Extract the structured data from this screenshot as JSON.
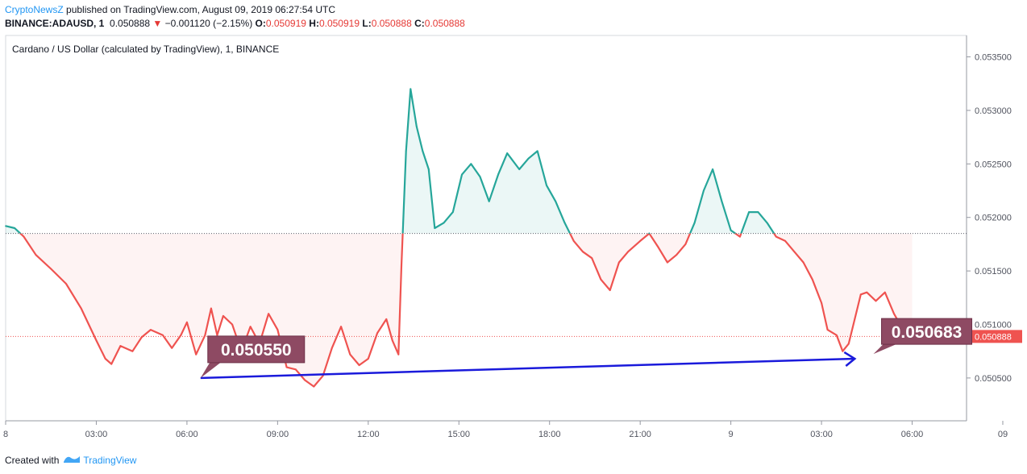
{
  "header": {
    "publisher": "CryptoNewsZ",
    "published_text": "published on TradingView.com, August 09, 2019 06:27:54 UTC",
    "symbol": "BINANCE:ADAUSD, 1",
    "last": "0.050888",
    "change_arrow": "▼",
    "change": "−0.001120 (−2.15%)",
    "o_label": "O:",
    "o_value": "0.050919",
    "h_label": "H:",
    "h_value": "0.050919",
    "l_label": "L:",
    "l_value": "0.050888",
    "c_label": "C:",
    "c_value": "0.050888"
  },
  "footer": {
    "created_with": "Created with",
    "brand": "TradingView"
  },
  "colors": {
    "up": "#26a69a",
    "down": "#ef5350",
    "arrow": "#1a1adb",
    "label_bg": "#8e4a63",
    "price_tag": "#ef5350"
  },
  "chart_data": {
    "type": "area",
    "title": "Cardano / US Dollar (calculated by TradingView), 1, BINANCE",
    "baseline": 0.05185,
    "last_price": 0.050888,
    "last_price_label": "0.050888",
    "series_tag": "ADAUSD",
    "ylim": [
      0.0501,
      0.0537
    ],
    "y_ticks": [
      0.0505,
      0.051,
      0.0515,
      0.052,
      0.0525,
      0.053,
      0.0535
    ],
    "y_tick_labels": [
      "0.050500",
      "0.051000",
      "0.051500",
      "0.052000",
      "0.052500",
      "0.053000",
      "0.053500"
    ],
    "xlim": [
      0,
      31.8
    ],
    "x_ticks": [
      0,
      3,
      6,
      9,
      12,
      15,
      18,
      21,
      24,
      27,
      30,
      33
    ],
    "x_tick_labels": [
      "8",
      "03:00",
      "06:00",
      "09:00",
      "12:00",
      "15:00",
      "18:00",
      "21:00",
      "9",
      "03:00",
      "06:00",
      "09"
    ],
    "x_unit": "hours since Aug 8 00:00",
    "x": [
      0,
      0.3,
      0.6,
      1.0,
      1.5,
      2.0,
      2.5,
      3.0,
      3.3,
      3.5,
      3.8,
      4.2,
      4.5,
      4.8,
      5.2,
      5.5,
      5.8,
      6.0,
      6.3,
      6.6,
      6.8,
      7.0,
      7.2,
      7.5,
      7.8,
      8.1,
      8.4,
      8.7,
      9.0,
      9.3,
      9.6,
      9.9,
      10.2,
      10.5,
      10.8,
      11.1,
      11.4,
      11.7,
      12.0,
      12.3,
      12.6,
      12.8,
      13.0,
      13.1,
      13.25,
      13.4,
      13.6,
      13.8,
      14.0,
      14.2,
      14.5,
      14.8,
      15.1,
      15.4,
      15.7,
      16.0,
      16.3,
      16.6,
      17.0,
      17.3,
      17.6,
      17.9,
      18.2,
      18.5,
      18.8,
      19.1,
      19.4,
      19.7,
      20.0,
      20.3,
      20.6,
      21.0,
      21.3,
      21.6,
      21.9,
      22.2,
      22.5,
      22.8,
      23.1,
      23.4,
      23.7,
      24.0,
      24.3,
      24.6,
      24.9,
      25.2,
      25.5,
      25.8,
      26.1,
      26.4,
      26.7,
      27.0,
      27.2,
      27.5,
      27.7,
      27.9,
      28.1,
      28.3,
      28.5,
      28.8,
      29.1,
      29.4,
      29.7,
      29.9,
      30.0
    ],
    "y": [
      0.05192,
      0.0519,
      0.05182,
      0.05165,
      0.05152,
      0.05138,
      0.05115,
      0.05085,
      0.05068,
      0.05063,
      0.0508,
      0.05075,
      0.05088,
      0.05095,
      0.0509,
      0.05078,
      0.0509,
      0.05102,
      0.05072,
      0.0509,
      0.05115,
      0.0509,
      0.05108,
      0.051,
      0.05075,
      0.05098,
      0.05082,
      0.0511,
      0.05095,
      0.0506,
      0.05058,
      0.05048,
      0.05042,
      0.05052,
      0.05078,
      0.05098,
      0.05072,
      0.05062,
      0.05068,
      0.05092,
      0.05105,
      0.05085,
      0.05072,
      0.05155,
      0.05262,
      0.0532,
      0.05285,
      0.05262,
      0.05245,
      0.0519,
      0.05195,
      0.05205,
      0.0524,
      0.0525,
      0.05238,
      0.05215,
      0.0524,
      0.0526,
      0.05245,
      0.05255,
      0.05262,
      0.0523,
      0.05215,
      0.05195,
      0.05178,
      0.05168,
      0.05162,
      0.05142,
      0.05132,
      0.05158,
      0.05168,
      0.05178,
      0.05185,
      0.05172,
      0.05158,
      0.05165,
      0.05175,
      0.05195,
      0.05225,
      0.05245,
      0.05215,
      0.05188,
      0.05182,
      0.05205,
      0.05205,
      0.05195,
      0.05182,
      0.05178,
      0.05168,
      0.05158,
      0.05142,
      0.0512,
      0.05095,
      0.0509,
      0.05075,
      0.05082,
      0.05105,
      0.05128,
      0.0513,
      0.05122,
      0.0513,
      0.0511,
      0.05095,
      0.05088,
      0.050888
    ],
    "annotations": [
      {
        "text": "0.050550",
        "x": 6.45,
        "y": 0.0505
      },
      {
        "text": "0.050683",
        "x": 29.2,
        "y": 0.05092
      }
    ],
    "trendline": {
      "x1": 6.45,
      "y1": 0.0505,
      "x2": 28.1,
      "y2": 0.05068
    }
  }
}
